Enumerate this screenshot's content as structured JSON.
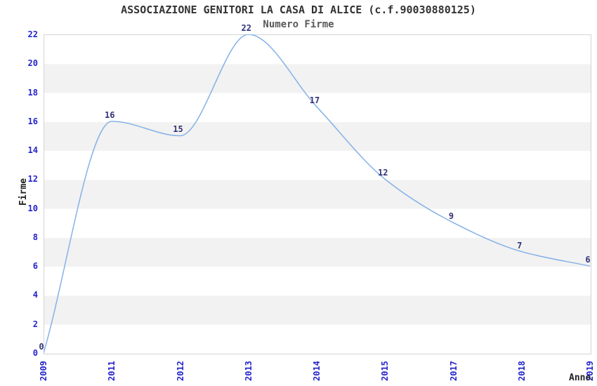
{
  "chart_data": {
    "type": "line",
    "title": "ASSOCIAZIONE GENITORI LA CASA DI ALICE (c.f.90030880125)",
    "subtitle": "Numero Firme",
    "xlabel": "Anno",
    "ylabel": "Firme",
    "categories": [
      "2009",
      "2011",
      "2012",
      "2013",
      "2014",
      "2015",
      "2017",
      "2018",
      "2019"
    ],
    "values": [
      0,
      16,
      15,
      22,
      17,
      12,
      9,
      7,
      6
    ],
    "ylim": [
      0,
      22
    ],
    "yticks": [
      0,
      2,
      4,
      6,
      8,
      10,
      12,
      14,
      16,
      18,
      20,
      22
    ],
    "grid": "alternating-horizontal-bands",
    "legend": "none",
    "data_labels_visible": true,
    "colors": {
      "line": "#85b1e8",
      "axis_tick_labels": "#2424cc",
      "data_labels": "#333377",
      "title": "#333333",
      "subtitle": "#595959",
      "axis_titles": "#222222",
      "band_gray": "#f2f2f2",
      "plot_border": "#d4d4d4",
      "background": "#ffffff"
    }
  }
}
